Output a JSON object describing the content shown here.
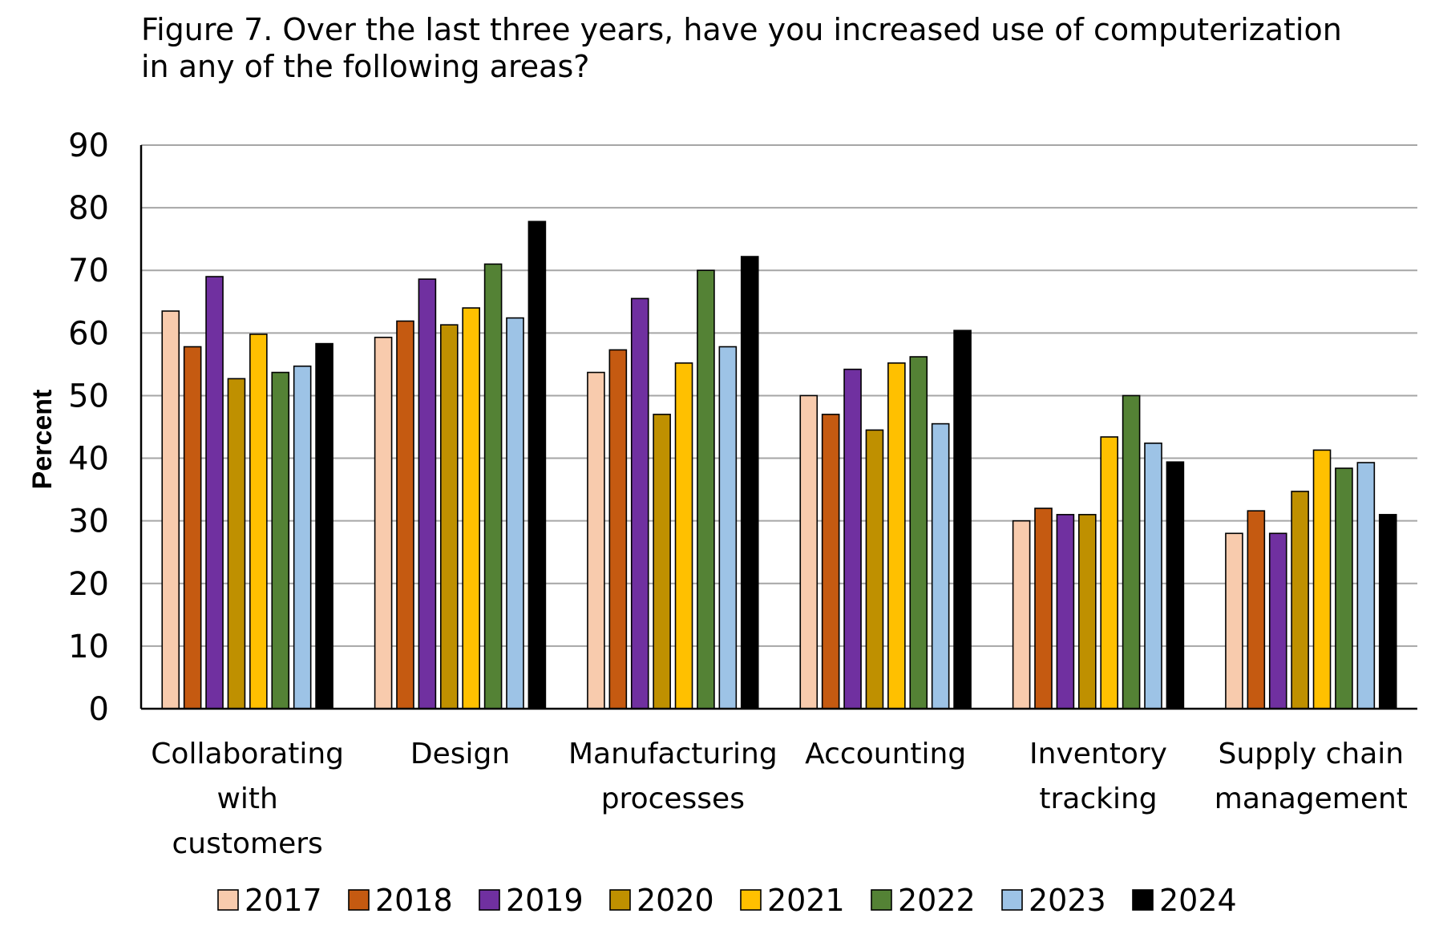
{
  "title_lines": [
    "Figure 7. Over the last three years, have you increased use of computerization",
    "in any of the following areas?"
  ],
  "chart_data": {
    "type": "bar",
    "title": "Figure 7. Over the last three years, have you increased use of computerization in any of the following areas?",
    "xlabel": "",
    "ylabel": "Percent",
    "ylim": [
      0,
      90
    ],
    "yticks": [
      0,
      10,
      20,
      30,
      40,
      50,
      60,
      70,
      80,
      90
    ],
    "grid": true,
    "legend_position": "bottom",
    "categories": [
      [
        "Collaborating",
        "with",
        "customers"
      ],
      [
        "Design"
      ],
      [
        "Manufacturing",
        "processes"
      ],
      [
        "Accounting"
      ],
      [
        "Inventory",
        "tracking"
      ],
      [
        "Supply chain",
        "management"
      ]
    ],
    "series": [
      {
        "name": "2017",
        "color": "#F8CBAD",
        "values": [
          63.5,
          59.3,
          53.7,
          50.0,
          30.0,
          28.0
        ]
      },
      {
        "name": "2018",
        "color": "#C55A11",
        "values": [
          57.8,
          61.9,
          57.3,
          47.0,
          32.0,
          31.6
        ]
      },
      {
        "name": "2019",
        "color": "#7030A0",
        "values": [
          69.0,
          68.6,
          65.5,
          54.2,
          31.0,
          28.0
        ]
      },
      {
        "name": "2020",
        "color": "#BF9000",
        "values": [
          52.7,
          61.3,
          47.0,
          44.5,
          31.0,
          34.7
        ]
      },
      {
        "name": "2021",
        "color": "#FFC000",
        "values": [
          59.8,
          64.0,
          55.2,
          55.2,
          43.4,
          41.3
        ]
      },
      {
        "name": "2022",
        "color": "#548235",
        "values": [
          53.7,
          71.0,
          70.0,
          56.2,
          50.0,
          38.4
        ]
      },
      {
        "name": "2023",
        "color": "#9DC3E6",
        "values": [
          54.7,
          62.4,
          57.8,
          45.5,
          42.4,
          39.3
        ]
      },
      {
        "name": "2024",
        "color": "#000000",
        "values": [
          58.3,
          77.8,
          72.2,
          60.4,
          39.4,
          31.0
        ]
      }
    ]
  }
}
